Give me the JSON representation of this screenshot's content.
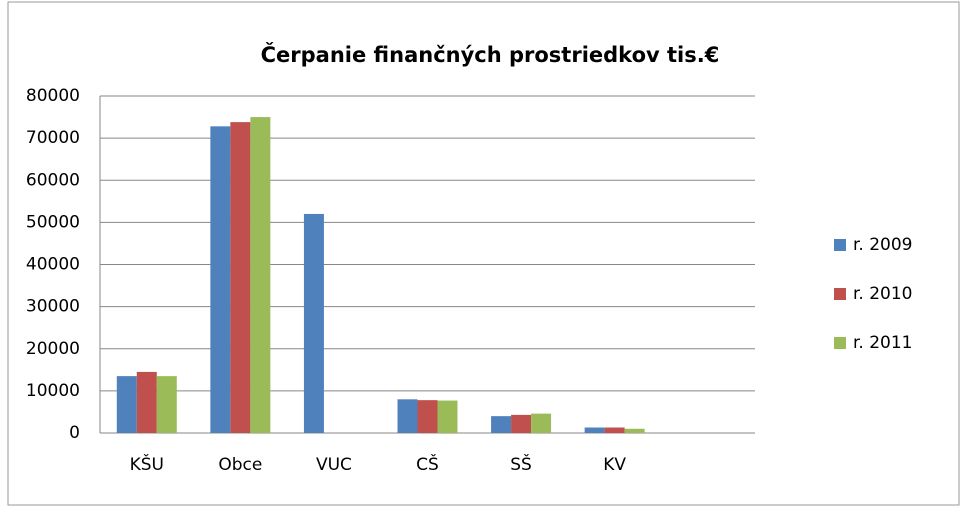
{
  "chart_data": {
    "type": "bar",
    "title": "Čerpanie finančných prostriedkov  tis.€",
    "categories": [
      "KŠU",
      "Obce",
      "VUC",
      "CŠ",
      "SŠ",
      "KV",
      null
    ],
    "series": [
      {
        "name": "r. 2009",
        "color": "#4f81bd",
        "values": [
          13500,
          72800,
          52000,
          8000,
          4000,
          1300,
          null
        ]
      },
      {
        "name": "r. 2010",
        "color": "#c0504d",
        "values": [
          14500,
          73800,
          0,
          7800,
          4300,
          1300,
          null
        ]
      },
      {
        "name": "r. 2011",
        "color": "#9bbb59",
        "values": [
          13500,
          75000,
          0,
          7700,
          4600,
          1000,
          null
        ]
      }
    ],
    "ylim": [
      0,
      80000
    ],
    "yticks": [
      0,
      10000,
      20000,
      30000,
      40000,
      50000,
      60000,
      70000,
      80000
    ],
    "grid": true,
    "legend": "right"
  }
}
